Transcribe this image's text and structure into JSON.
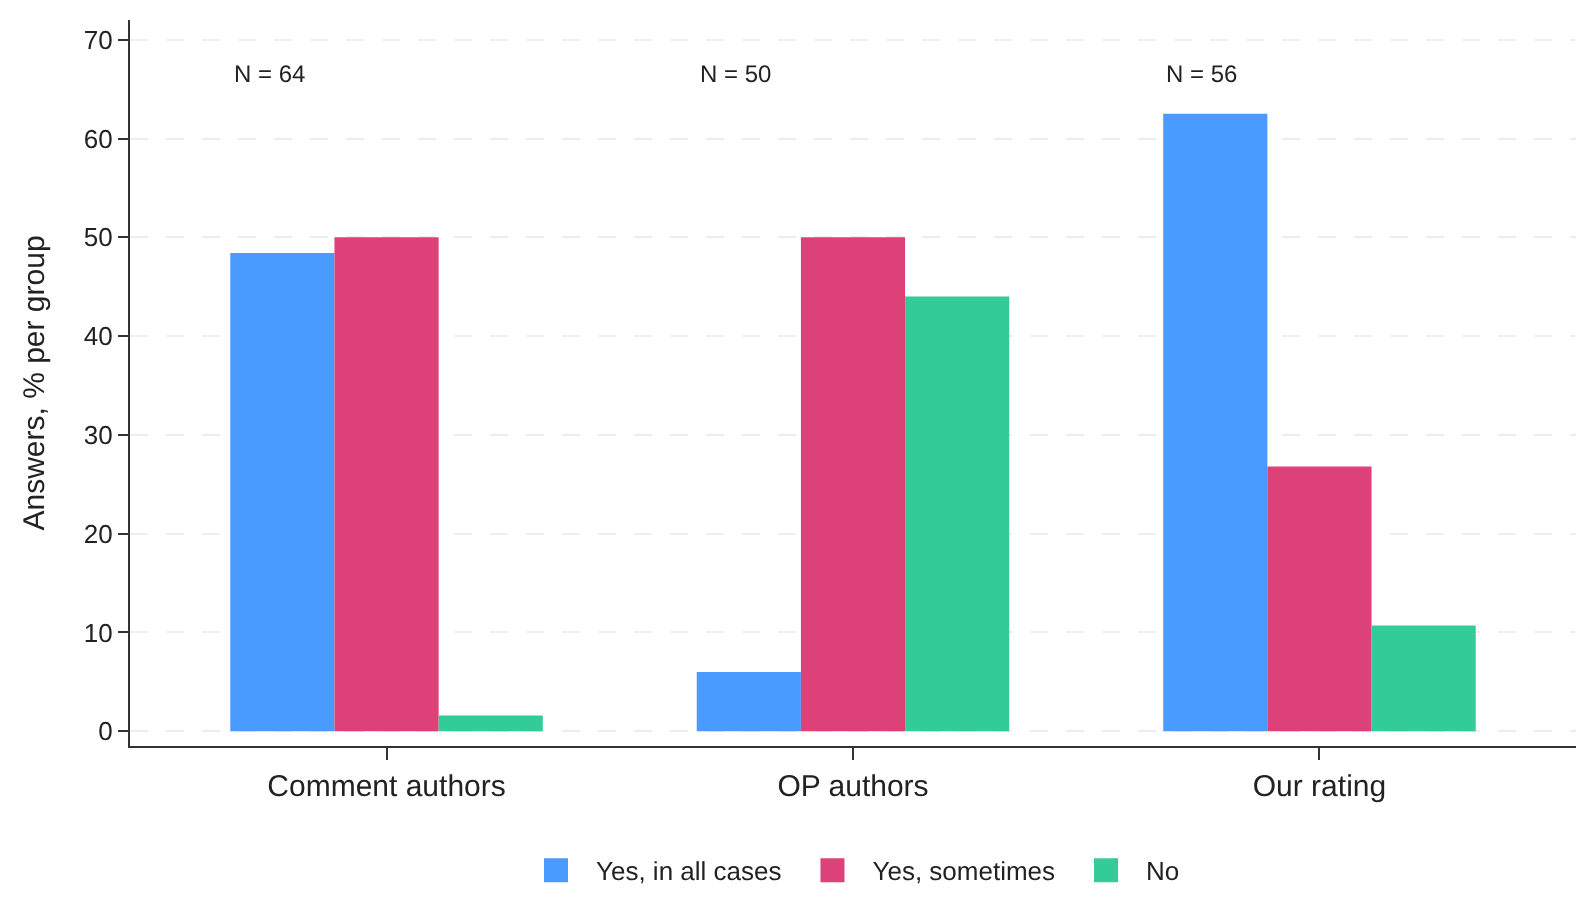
{
  "chart_data": {
    "type": "bar",
    "ylabel": "Answers, % per group",
    "categories": [
      "Comment authors",
      "OP authors",
      "Our rating"
    ],
    "series": [
      {
        "name": "Yes, in all cases",
        "color": "#4a9bff",
        "values": [
          48.4,
          6,
          62.5
        ]
      },
      {
        "name": "Yes, sometimes",
        "color": "#dc4278",
        "values": [
          50,
          50,
          26.8
        ]
      },
      {
        "name": "No",
        "color": "#33cc99",
        "values": [
          1.6,
          44,
          10.7
        ]
      }
    ],
    "ylim": [
      -1.5,
      72
    ],
    "yticks": [
      0,
      10,
      20,
      30,
      40,
      50,
      60,
      70
    ],
    "grid": "y",
    "legend": "bottom",
    "annotations": [
      "N = 64",
      "N = 50",
      "N = 56"
    ]
  }
}
